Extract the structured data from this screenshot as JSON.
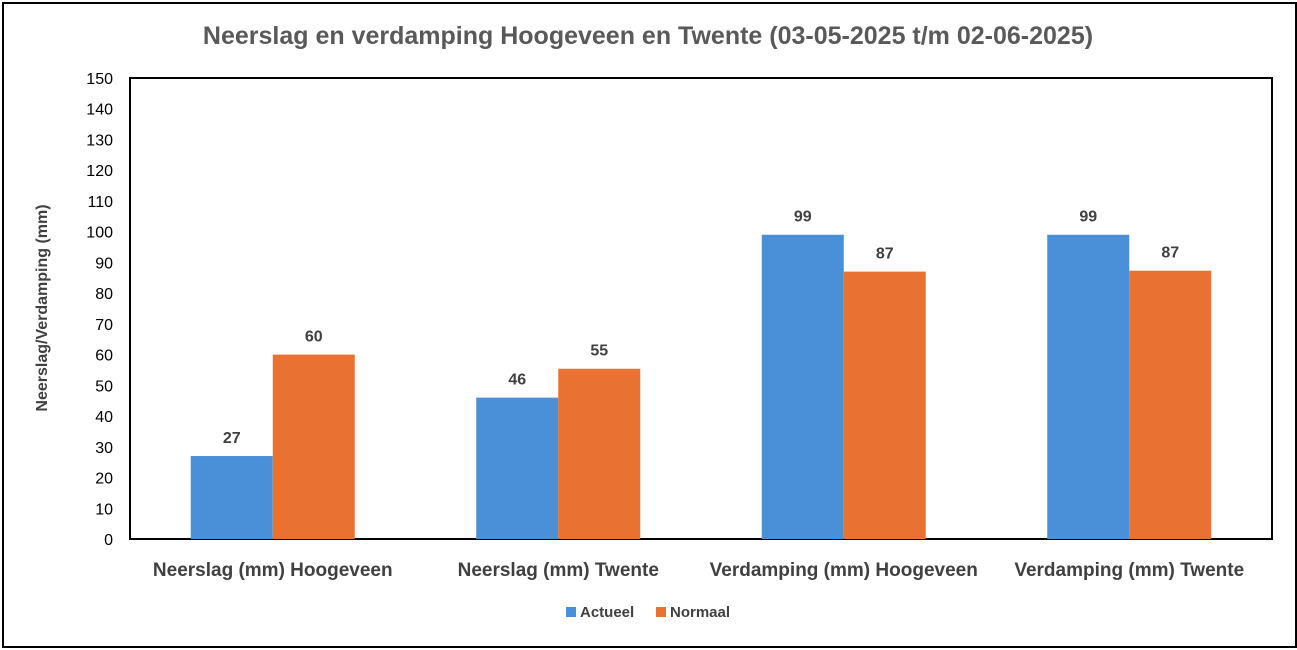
{
  "chart_data": {
    "type": "bar",
    "title": "Neerslag en verdamping Hoogeveen en Twente (03-05-2025 t/m 02-06-2025)",
    "ylabel": "Neerslag/Verdamping (mm)",
    "xlabel": "",
    "ylim": [
      0,
      150
    ],
    "yticks": [
      "0",
      "10",
      "20",
      "30",
      "40",
      "50",
      "60",
      "70",
      "80",
      "90",
      "100",
      "110",
      "120",
      "130",
      "140",
      "150"
    ],
    "categories": [
      "Neerslag (mm) Hoogeveen",
      "Neerslag (mm) Twente",
      "Verdamping (mm) Hoogeveen",
      "Verdamping (mm) Twente"
    ],
    "series": [
      {
        "name": "Actueel",
        "color": "#4a90d9",
        "values": [
          27,
          46,
          99,
          99
        ]
      },
      {
        "name": "Normaal",
        "color": "#e97132",
        "values": [
          60,
          55.4,
          87,
          87.3
        ]
      }
    ],
    "data_labels": [
      [
        "27",
        "46",
        "99",
        "99"
      ],
      [
        "60",
        "55",
        "87",
        "87"
      ]
    ],
    "legend": "bottom",
    "grid": false
  }
}
